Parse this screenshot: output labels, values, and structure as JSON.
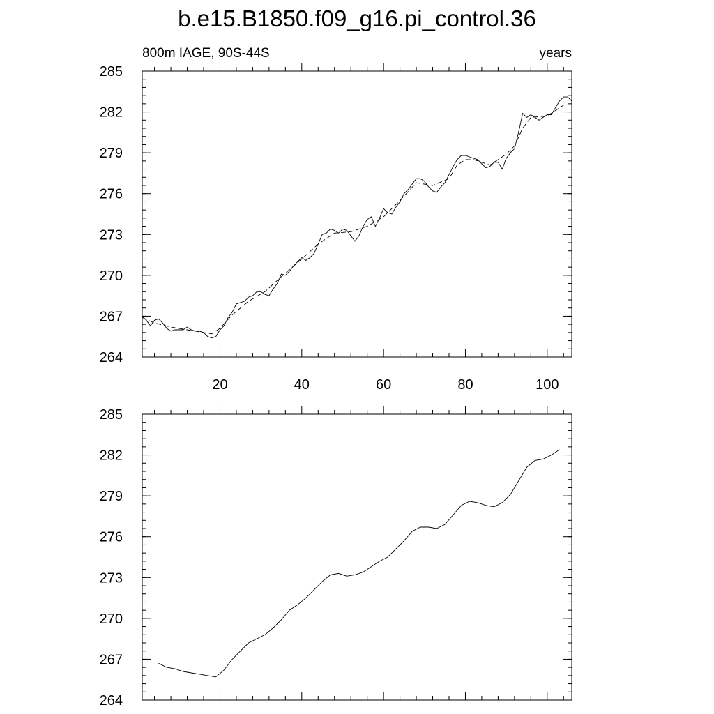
{
  "title": "b.e15.B1850.f09_g16.pi_control.36",
  "chart_data": [
    {
      "type": "line",
      "left_string": "800m IAGE, 90S-44S",
      "right_string": "years",
      "xlim": [
        1,
        106
      ],
      "ylim": [
        264,
        285
      ],
      "x_ticks": [
        20,
        40,
        60,
        80,
        100
      ],
      "y_ticks": [
        264,
        267,
        270,
        273,
        276,
        279,
        282,
        285
      ],
      "series": [
        {
          "style": "solid",
          "x": [
            1,
            2,
            3,
            4,
            5,
            6,
            7,
            8,
            9,
            10,
            11,
            12,
            13,
            14,
            15,
            16,
            17,
            18,
            19,
            20,
            21,
            22,
            23,
            24,
            25,
            26,
            27,
            28,
            29,
            30,
            31,
            32,
            33,
            34,
            35,
            36,
            37,
            38,
            39,
            40,
            41,
            42,
            43,
            44,
            45,
            46,
            47,
            48,
            49,
            50,
            51,
            52,
            53,
            54,
            55,
            56,
            57,
            58,
            59,
            60,
            61,
            62,
            63,
            64,
            65,
            66,
            67,
            68,
            69,
            70,
            71,
            72,
            73,
            74,
            75,
            76,
            77,
            78,
            79,
            80,
            81,
            82,
            83,
            84,
            85,
            86,
            87,
            88,
            89,
            90,
            91,
            92,
            93,
            94,
            95,
            96,
            97,
            98,
            99,
            100,
            101,
            102,
            103,
            104,
            105,
            106
          ],
          "values": [
            267.0,
            266.7,
            266.3,
            266.7,
            266.8,
            266.5,
            266.1,
            265.9,
            266.0,
            266.0,
            266.0,
            266.2,
            266.0,
            265.9,
            265.9,
            265.8,
            265.5,
            265.4,
            265.5,
            266.0,
            266.3,
            266.9,
            267.3,
            267.9,
            268.0,
            268.1,
            268.4,
            268.5,
            268.8,
            268.8,
            268.6,
            268.5,
            269.0,
            269.4,
            270.1,
            270.0,
            270.3,
            270.7,
            271.0,
            271.3,
            271.1,
            271.3,
            271.6,
            272.3,
            273.0,
            273.1,
            273.4,
            273.3,
            273.1,
            273.4,
            273.3,
            272.9,
            272.5,
            272.9,
            273.6,
            274.1,
            274.3,
            273.6,
            274.2,
            274.9,
            274.6,
            274.5,
            275.0,
            275.4,
            276.0,
            276.3,
            276.7,
            277.1,
            277.1,
            276.9,
            276.5,
            276.2,
            276.1,
            276.5,
            276.8,
            277.4,
            278.0,
            278.5,
            278.8,
            278.8,
            278.7,
            278.6,
            278.5,
            278.2,
            277.9,
            278.0,
            278.3,
            278.3,
            277.8,
            278.6,
            279.0,
            279.3,
            280.5,
            281.9,
            281.6,
            281.8,
            281.6,
            281.4,
            281.6,
            281.8,
            281.8,
            282.3,
            282.8,
            283.1,
            283.1,
            282.8
          ]
        },
        {
          "style": "dashed",
          "x": [
            1,
            4,
            8,
            12,
            16,
            18,
            20,
            23,
            27,
            31,
            35,
            40,
            44,
            48,
            52,
            56,
            60,
            64,
            68,
            72,
            76,
            78,
            80,
            82,
            86,
            90,
            92,
            94,
            96,
            100,
            104
          ],
          "values": [
            266.9,
            266.5,
            266.2,
            266.0,
            265.8,
            265.7,
            266.1,
            267.1,
            268.1,
            268.8,
            269.9,
            271.2,
            272.3,
            273.1,
            273.2,
            273.6,
            274.3,
            275.5,
            276.8,
            276.6,
            277.1,
            278.1,
            278.5,
            278.5,
            278.1,
            278.9,
            279.5,
            280.8,
            281.6,
            281.7,
            282.5
          ]
        }
      ]
    },
    {
      "type": "line",
      "xlim": [
        1,
        106
      ],
      "ylim": [
        264,
        285
      ],
      "x_ticks": [
        20,
        40,
        60,
        80,
        100
      ],
      "y_ticks": [
        264,
        267,
        270,
        273,
        276,
        279,
        282,
        285
      ],
      "series": [
        {
          "style": "solid",
          "x": [
            5,
            7,
            9,
            11,
            13,
            15,
            17,
            19,
            21,
            23,
            25,
            27,
            29,
            31,
            33,
            35,
            37,
            39,
            41,
            43,
            45,
            47,
            49,
            51,
            53,
            55,
            57,
            59,
            61,
            63,
            65,
            67,
            69,
            71,
            73,
            75,
            77,
            79,
            81,
            83,
            85,
            87,
            89,
            91,
            93,
            95,
            97,
            99,
            101,
            103
          ],
          "values": [
            266.7,
            266.4,
            266.3,
            266.1,
            266.0,
            265.9,
            265.8,
            265.7,
            266.2,
            267.0,
            267.6,
            268.2,
            268.5,
            268.8,
            269.3,
            269.9,
            270.6,
            271.0,
            271.5,
            272.1,
            272.7,
            273.2,
            273.3,
            273.1,
            273.2,
            273.4,
            273.8,
            274.2,
            274.5,
            275.1,
            275.7,
            276.4,
            276.7,
            276.7,
            276.6,
            276.9,
            277.6,
            278.3,
            278.6,
            278.5,
            278.3,
            278.2,
            278.5,
            279.1,
            280.1,
            281.1,
            281.6,
            281.7,
            282.0,
            282.4
          ]
        }
      ]
    }
  ]
}
